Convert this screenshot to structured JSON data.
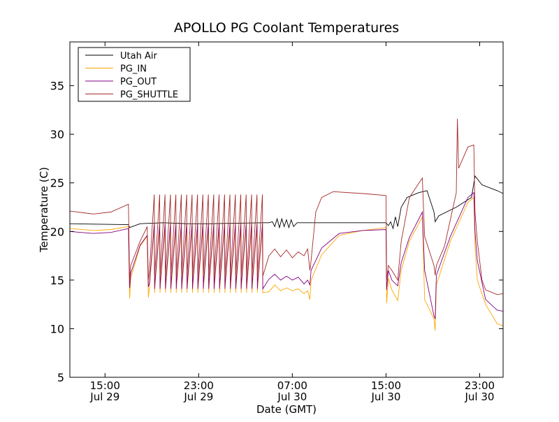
{
  "chart_data": {
    "type": "line",
    "title": "APOLLO PG Coolant Temperatures",
    "xlabel": "Date (GMT)",
    "ylabel": "Temperature (C)",
    "x_unit": "hours since Jul 29 12:00 GMT",
    "xlim": [
      0,
      37
    ],
    "ylim": [
      5,
      39.5
    ],
    "y_ticks": [
      5,
      10,
      15,
      20,
      25,
      30,
      35
    ],
    "x_ticks": [
      {
        "x": 3,
        "time": "15:00",
        "date": "Jul 29"
      },
      {
        "x": 11,
        "time": "23:00",
        "date": "Jul 29"
      },
      {
        "x": 19,
        "time": "07:00",
        "date": "Jul 30"
      },
      {
        "x": 27,
        "time": "15:00",
        "date": "Jul 30"
      },
      {
        "x": 35,
        "time": "23:00",
        "date": "Jul 30"
      }
    ],
    "grid": false,
    "legend_position": "top-left",
    "series": [
      {
        "name": "Utah Air",
        "color": "#000000",
        "points": [
          [
            0,
            20.8
          ],
          [
            5,
            20.7
          ],
          [
            5.1,
            20.4
          ],
          [
            6,
            20.8
          ],
          [
            8,
            20.9
          ],
          [
            10,
            20.8
          ],
          [
            12,
            20.8
          ],
          [
            16.5,
            20.9
          ],
          [
            17,
            20.9
          ],
          [
            17.3,
            21.0
          ],
          [
            17.5,
            20.5
          ],
          [
            17.7,
            21.3
          ],
          [
            17.9,
            20.4
          ],
          [
            18.1,
            21.3
          ],
          [
            18.3,
            20.5
          ],
          [
            18.5,
            21.2
          ],
          [
            18.7,
            20.4
          ],
          [
            18.9,
            21.2
          ],
          [
            19.1,
            20.5
          ],
          [
            19.4,
            20.9
          ],
          [
            21,
            20.9
          ],
          [
            27,
            20.9
          ],
          [
            27.2,
            20.6
          ],
          [
            27.4,
            21.0
          ],
          [
            27.6,
            20.3
          ],
          [
            27.8,
            21.5
          ],
          [
            28,
            20.5
          ],
          [
            28.3,
            22.5
          ],
          [
            28.8,
            23.5
          ],
          [
            29.8,
            24.0
          ],
          [
            30.5,
            24.2
          ],
          [
            31.1,
            22.0
          ],
          [
            31.2,
            21.0
          ],
          [
            31.5,
            21.6
          ],
          [
            33,
            22.5
          ],
          [
            34.3,
            23.5
          ],
          [
            34.6,
            25.7
          ],
          [
            35.2,
            24.8
          ],
          [
            36.5,
            24.2
          ],
          [
            37,
            23.9
          ]
        ]
      },
      {
        "name": "PG_IN",
        "color": "#ffa500",
        "points": [
          [
            0,
            20.3
          ],
          [
            2,
            20.1
          ],
          [
            3.5,
            20.2
          ],
          [
            5,
            20.5
          ],
          [
            5.1,
            13.1
          ],
          [
            5.2,
            15.2
          ],
          [
            6,
            18.5
          ],
          [
            6.6,
            19.5
          ],
          [
            6.7,
            13.2
          ],
          [
            6.8,
            14.8
          ],
          [
            7.6,
            14.9
          ],
          [
            8.5,
            15.0
          ],
          [
            9.5,
            15.1
          ],
          [
            10.5,
            15.2
          ],
          [
            11.5,
            15.3
          ],
          [
            12.5,
            15.4
          ],
          [
            13.5,
            15.5
          ],
          [
            14.5,
            15.5
          ],
          [
            15.5,
            15.6
          ],
          [
            16.2,
            15.5
          ],
          [
            16.5,
            14.3
          ],
          [
            17,
            13.8
          ],
          [
            17.5,
            14.5
          ],
          [
            18,
            13.9
          ],
          [
            18.5,
            14.2
          ],
          [
            19,
            13.9
          ],
          [
            19.5,
            14.1
          ],
          [
            20,
            13.6
          ],
          [
            20.3,
            13.9
          ],
          [
            20.5,
            13.0
          ],
          [
            20.6,
            15.0
          ],
          [
            21.5,
            17.6
          ],
          [
            23,
            19.6
          ],
          [
            25,
            20.1
          ],
          [
            27,
            20.4
          ],
          [
            27.05,
            12.6
          ],
          [
            27.2,
            15.2
          ],
          [
            27.5,
            14.0
          ],
          [
            28,
            12.9
          ],
          [
            28.3,
            16.0
          ],
          [
            29,
            19.0
          ],
          [
            30.1,
            21.5
          ],
          [
            30.3,
            13.0
          ],
          [
            31.1,
            11.0
          ],
          [
            31.2,
            9.8
          ],
          [
            31.3,
            14.5
          ],
          [
            32.5,
            19.0
          ],
          [
            34.0,
            23.0
          ],
          [
            34.5,
            23.5
          ],
          [
            34.6,
            18.5
          ],
          [
            34.8,
            15.0
          ],
          [
            35.5,
            12.5
          ],
          [
            36.5,
            10.5
          ],
          [
            37,
            10.3
          ]
        ]
      },
      {
        "name": "PG_OUT",
        "color": "#800080",
        "points": [
          [
            0,
            20.0
          ],
          [
            2,
            19.8
          ],
          [
            3.5,
            19.9
          ],
          [
            5,
            20.3
          ],
          [
            5.1,
            14.2
          ],
          [
            5.2,
            15.7
          ],
          [
            6,
            18.6
          ],
          [
            6.6,
            19.6
          ],
          [
            6.7,
            14.3
          ],
          [
            6.8,
            15.4
          ],
          [
            7.6,
            15.5
          ],
          [
            8.5,
            15.6
          ],
          [
            9.5,
            15.7
          ],
          [
            10.5,
            15.8
          ],
          [
            11.5,
            15.9
          ],
          [
            12.5,
            16.0
          ],
          [
            13.5,
            16.0
          ],
          [
            14.5,
            16.1
          ],
          [
            15.5,
            16.1
          ],
          [
            16.2,
            16.0
          ],
          [
            16.5,
            15.3
          ],
          [
            17,
            15.1
          ],
          [
            17.5,
            15.6
          ],
          [
            18,
            15.0
          ],
          [
            18.5,
            15.4
          ],
          [
            19,
            15.0
          ],
          [
            19.5,
            15.3
          ],
          [
            20,
            14.6
          ],
          [
            20.3,
            15.0
          ],
          [
            20.5,
            14.5
          ],
          [
            20.6,
            16.0
          ],
          [
            21.5,
            18.3
          ],
          [
            23,
            19.8
          ],
          [
            25,
            20.1
          ],
          [
            27,
            20.2
          ],
          [
            27.05,
            14.0
          ],
          [
            27.2,
            16.0
          ],
          [
            27.5,
            15.0
          ],
          [
            28,
            14.4
          ],
          [
            28.3,
            16.8
          ],
          [
            29,
            19.4
          ],
          [
            30.1,
            22.0
          ],
          [
            30.3,
            16.0
          ],
          [
            31.1,
            11.3
          ],
          [
            31.2,
            11.0
          ],
          [
            31.3,
            15.5
          ],
          [
            32.5,
            19.5
          ],
          [
            34.0,
            23.5
          ],
          [
            34.5,
            24.0
          ],
          [
            34.6,
            20.0
          ],
          [
            34.8,
            17.0
          ],
          [
            35.5,
            13.0
          ],
          [
            36.5,
            11.9
          ],
          [
            37,
            11.8
          ]
        ]
      },
      {
        "name": "PG_SHUTTLE",
        "color": "#a52a2a",
        "points": [
          [
            0,
            22.1
          ],
          [
            2,
            21.8
          ],
          [
            3.5,
            22.0
          ],
          [
            5,
            22.8
          ],
          [
            5.1,
            15.0
          ],
          [
            5.2,
            16.5
          ],
          [
            6,
            19.0
          ],
          [
            6.5,
            20.2
          ],
          [
            6.6,
            20.5
          ],
          [
            6.7,
            15.0
          ],
          [
            6.8,
            16.0
          ],
          [
            7.5,
            23.2
          ],
          [
            8.5,
            23.3
          ],
          [
            9.5,
            23.3
          ],
          [
            10.5,
            23.4
          ],
          [
            11.5,
            23.4
          ],
          [
            12.5,
            23.5
          ],
          [
            13.5,
            23.6
          ],
          [
            14.5,
            23.8
          ],
          [
            15.5,
            24.0
          ],
          [
            16.2,
            24.5
          ],
          [
            16.5,
            18.0
          ],
          [
            17,
            17.5
          ],
          [
            17.5,
            18.2
          ],
          [
            18,
            17.4
          ],
          [
            18.5,
            18.1
          ],
          [
            19,
            17.3
          ],
          [
            19.5,
            17.9
          ],
          [
            20,
            17.5
          ],
          [
            20.3,
            18.2
          ],
          [
            20.5,
            16.0
          ],
          [
            20.6,
            17.0
          ],
          [
            21,
            22.0
          ],
          [
            21.5,
            23.5
          ],
          [
            22.5,
            24.1
          ],
          [
            25,
            23.9
          ],
          [
            27,
            23.7
          ],
          [
            27.05,
            15.0
          ],
          [
            27.2,
            16.5
          ],
          [
            27.5,
            16.0
          ],
          [
            28,
            15.0
          ],
          [
            28.3,
            19.0
          ],
          [
            29,
            23.5
          ],
          [
            30.1,
            25.5
          ],
          [
            30.3,
            19.5
          ],
          [
            31.1,
            16.5
          ],
          [
            31.2,
            15.5
          ],
          [
            31.3,
            16.5
          ],
          [
            32,
            18.5
          ],
          [
            33,
            24.0
          ],
          [
            33.1,
            31.6
          ],
          [
            33.2,
            26.5
          ],
          [
            34.0,
            28.7
          ],
          [
            34.5,
            28.9
          ],
          [
            34.6,
            22.0
          ],
          [
            34.8,
            19.0
          ],
          [
            35.2,
            15.0
          ],
          [
            35.5,
            14.0
          ],
          [
            36.5,
            13.5
          ],
          [
            37,
            13.6
          ]
        ]
      }
    ],
    "cycling": [
      {
        "series": "PG_SHUTTLE",
        "start": 6.8,
        "end": 16.5,
        "count": 21,
        "low": 16.0,
        "high": 23.8
      },
      {
        "series": "PG_OUT",
        "start": 6.8,
        "end": 16.5,
        "count": 21,
        "low": 14.7,
        "high": 20.8
      },
      {
        "series": "PG_IN",
        "start": 6.8,
        "end": 16.5,
        "count": 21,
        "low": 14.3,
        "high": 20.3
      }
    ]
  }
}
